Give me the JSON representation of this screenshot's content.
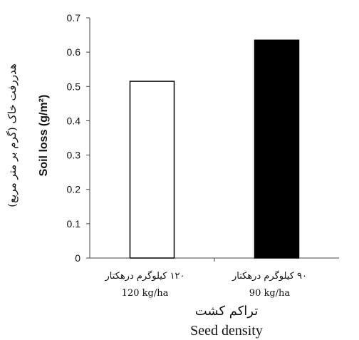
{
  "chart_data": {
    "type": "bar",
    "categories": [
      {
        "fa": "۱۲۰ کیلوگرم درهکتار",
        "en": "120 kg/ha"
      },
      {
        "fa": "۹۰ کیلوگرم درهکتار",
        "en": "90 kg/ha"
      }
    ],
    "values": [
      0.515,
      0.635
    ],
    "bar_colors": [
      "#ffffff",
      "#000000"
    ],
    "ylim": [
      0,
      0.7
    ],
    "yticks": [
      "0",
      "0.1",
      "0.2",
      "0.3",
      "0.4",
      "0.5",
      "0.6",
      "0.7"
    ],
    "xlabel": {
      "fa": "تراکم کشت",
      "en": "Seed density"
    },
    "ylabel": {
      "fa": "هدررفت خاک (گرم بر متر مربع)",
      "en": "Soil loss (g/m²)"
    },
    "grid": false
  }
}
